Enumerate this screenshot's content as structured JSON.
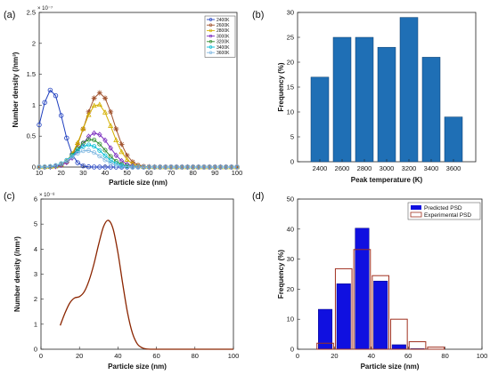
{
  "panel_labels": [
    "(a)",
    "(b)",
    "(c)",
    "(d)"
  ],
  "chart_data": [
    {
      "id": "a",
      "type": "line",
      "xlabel": "Particle size (nm)",
      "ylabel": "Number density (/nm³)",
      "exponent_label": "× 10⁻⁷",
      "xlim": [
        10,
        100
      ],
      "ylim": [
        0,
        2.5
      ],
      "xticks": [
        10,
        20,
        30,
        40,
        50,
        60,
        70,
        80,
        90,
        100
      ],
      "yticks": [
        0,
        0.5,
        1,
        1.5,
        2,
        2.5
      ],
      "ytick_labels": [
        "0",
        "0.5",
        "1",
        "1.5",
        "2",
        "2.5"
      ],
      "legend_position": "top-right",
      "x": [
        10,
        12.5,
        15,
        17.5,
        20,
        22.5,
        25,
        27.5,
        30,
        32.5,
        35,
        37.5,
        40,
        42.5,
        45,
        47.5,
        50,
        52.5,
        55,
        57.5,
        60,
        62.5,
        65,
        67.5,
        70,
        72.5,
        75,
        77.5,
        80,
        82.5,
        85,
        87.5,
        90,
        92.5,
        95,
        97.5,
        100
      ],
      "series": [
        {
          "name": "2400K",
          "color": "#1f3fbf",
          "marker": "circle",
          "peak": 1.25,
          "center": 15.5,
          "width": 5.0
        },
        {
          "name": "2600K",
          "color": "#a0522d",
          "marker": "star",
          "peak": 1.2,
          "center": 37.5,
          "width": 6.5
        },
        {
          "name": "2800K",
          "color": "#d4b000",
          "marker": "triangle",
          "peak": 1.02,
          "center": 36.5,
          "width": 6.5
        },
        {
          "name": "3000K",
          "color": "#7b2fbf",
          "marker": "diamond",
          "peak": 0.55,
          "center": 35.5,
          "width": 6.5
        },
        {
          "name": "3200K",
          "color": "#2e8b2e",
          "marker": "circle",
          "peak": 0.45,
          "center": 33.5,
          "width": 6.5
        },
        {
          "name": "3400K",
          "color": "#00bcd4",
          "marker": "circle",
          "peak": 0.36,
          "center": 32.5,
          "width": 6.5
        },
        {
          "name": "3600K",
          "color": "#7fb7e0",
          "marker": "circle",
          "peak": 0.27,
          "center": 31.5,
          "width": 6.5
        }
      ]
    },
    {
      "id": "b",
      "type": "bar",
      "xlabel": "Peak temperature (K)",
      "ylabel": "Frequency (%)",
      "categories": [
        "2400",
        "2600",
        "2800",
        "3000",
        "3200",
        "3400",
        "3600"
      ],
      "values": [
        17,
        25,
        25,
        23,
        29,
        21,
        9
      ],
      "ylim": [
        0,
        30
      ],
      "yticks": [
        0,
        5,
        10,
        15,
        20,
        25,
        30
      ],
      "color": "#1f6fb5"
    },
    {
      "id": "c",
      "type": "line",
      "xlabel": "Particle size (nm)",
      "ylabel": "Number density (/nm³)",
      "exponent_label": "× 10⁻⁸",
      "xlim": [
        0,
        100
      ],
      "ylim": [
        0,
        6
      ],
      "xticks": [
        0,
        20,
        40,
        60,
        80,
        100
      ],
      "yticks": [
        0,
        1,
        2,
        3,
        4,
        5,
        6
      ],
      "color": "#8b2500",
      "x": [
        10,
        12.5,
        15,
        17.5,
        20,
        22.5,
        25,
        27.5,
        30,
        32.5,
        35,
        37.5,
        40,
        42.5,
        45,
        47.5,
        50,
        52.5,
        55,
        57.5,
        60,
        70,
        80,
        90,
        100
      ],
      "y": [
        0.95,
        1.45,
        1.85,
        2.05,
        2.1,
        2.3,
        2.75,
        3.4,
        4.2,
        4.9,
        5.15,
        4.8,
        3.85,
        2.6,
        1.45,
        0.65,
        0.22,
        0.06,
        0.01,
        0,
        0,
        0,
        0,
        0,
        0
      ]
    },
    {
      "id": "d",
      "type": "bar",
      "xlabel": "Particle size (nm)",
      "ylabel": "Frequency (%)",
      "xlim": [
        0,
        100
      ],
      "ylim": [
        0,
        50
      ],
      "xticks": [
        0,
        20,
        40,
        60,
        80,
        100
      ],
      "yticks": [
        0,
        10,
        20,
        30,
        40,
        50
      ],
      "bin_width": 10,
      "bin_centers": [
        15,
        25,
        35,
        45,
        55,
        65,
        75
      ],
      "legend_position": "top-right",
      "series": [
        {
          "name": "Predicted PSD",
          "values": [
            13.3,
            21.8,
            40.3,
            22.7,
            1.5,
            0.2,
            0.0
          ],
          "color": "#1010e0"
        },
        {
          "name": "Experimental PSD",
          "values": [
            2.0,
            26.8,
            33.2,
            24.5,
            10.0,
            2.5,
            0.7
          ],
          "color": "#a0301f"
        }
      ]
    }
  ]
}
